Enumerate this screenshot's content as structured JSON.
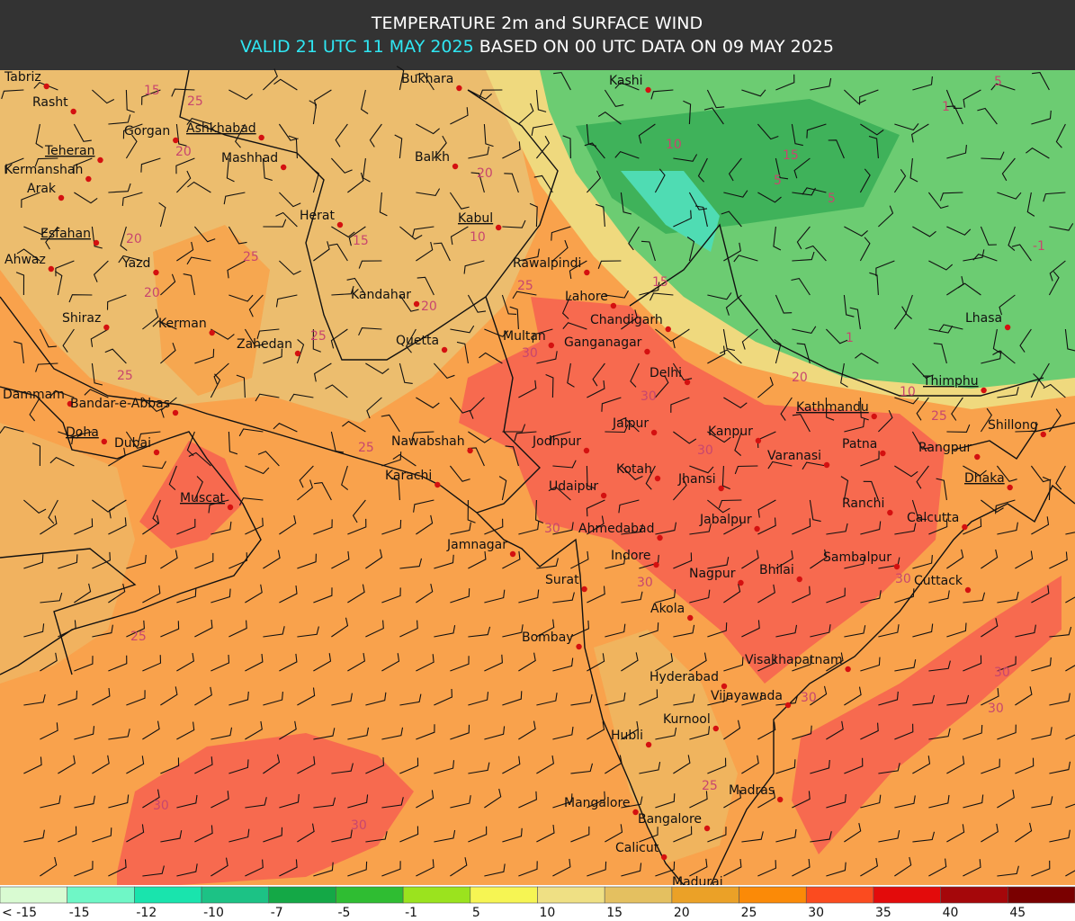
{
  "header": {
    "title": "TEMPERATURE 2m and SURFACE WIND",
    "valid": "VALID 21 UTC 11 MAY 2025",
    "based": "BASED ON 00 UTC DATA ON 09 MAY 2025"
  },
  "cities": [
    {
      "name": "Tabriz"
    },
    {
      "name": "Rasht"
    },
    {
      "name": "Gorgan"
    },
    {
      "name": "Ashkhabad",
      "capital": true
    },
    {
      "name": "Bukhara"
    },
    {
      "name": "Kashi"
    },
    {
      "name": "Teheran",
      "capital": true
    },
    {
      "name": "Mashhad"
    },
    {
      "name": "Balkh"
    },
    {
      "name": "Kermanshah"
    },
    {
      "name": "Arak"
    },
    {
      "name": "Herat"
    },
    {
      "name": "Kabul",
      "capital": true
    },
    {
      "name": "Esfahan",
      "capital": true
    },
    {
      "name": "Ahwaz"
    },
    {
      "name": "Yazd"
    },
    {
      "name": "Rawalpindi"
    },
    {
      "name": "Kandahar"
    },
    {
      "name": "Lahore"
    },
    {
      "name": "Shiraz"
    },
    {
      "name": "Lhasa"
    },
    {
      "name": "Chandigarh"
    },
    {
      "name": "Kerman"
    },
    {
      "name": "Multan"
    },
    {
      "name": "Ganganagar"
    },
    {
      "name": "Zahedan"
    },
    {
      "name": "Quetta"
    },
    {
      "name": "Delhi"
    },
    {
      "name": "Dammam"
    },
    {
      "name": "Thimphu",
      "capital": true
    },
    {
      "name": "Bandar-e-Abbas"
    },
    {
      "name": "Kathmandu",
      "capital": true
    },
    {
      "name": "Jaipur"
    },
    {
      "name": "Shillong"
    },
    {
      "name": "Kanpur"
    },
    {
      "name": "Doha",
      "capital": true
    },
    {
      "name": "Dubai"
    },
    {
      "name": "Nawabshah"
    },
    {
      "name": "Jodhpur"
    },
    {
      "name": "Patna"
    },
    {
      "name": "Rangpur"
    },
    {
      "name": "Varanasi"
    },
    {
      "name": "Kotah"
    },
    {
      "name": "Karachi"
    },
    {
      "name": "Jhansi"
    },
    {
      "name": "Dhaka",
      "capital": true
    },
    {
      "name": "Udaipur"
    },
    {
      "name": "Muscat",
      "capital": true
    },
    {
      "name": "Ranchi"
    },
    {
      "name": "Calcutta"
    },
    {
      "name": "Jabalpur"
    },
    {
      "name": "Ahmedabad"
    },
    {
      "name": "Jamnagar"
    },
    {
      "name": "Indore"
    },
    {
      "name": "Sambalpur"
    },
    {
      "name": "Surat"
    },
    {
      "name": "Nagpur"
    },
    {
      "name": "Bhilai"
    },
    {
      "name": "Cuttack"
    },
    {
      "name": "Akola"
    },
    {
      "name": "Bombay"
    },
    {
      "name": "Visakhapatnam"
    },
    {
      "name": "Hyderabad"
    },
    {
      "name": "Vijayawada"
    },
    {
      "name": "Kurnool"
    },
    {
      "name": "Hubli"
    },
    {
      "name": "Madras"
    },
    {
      "name": "Mangalore"
    },
    {
      "name": "Bangalore"
    },
    {
      "name": "Calicut"
    },
    {
      "name": "Madurai"
    }
  ],
  "contour_labels": [
    15,
    25,
    20,
    25,
    20,
    20,
    15,
    20,
    10,
    25,
    20,
    25,
    25,
    25,
    30,
    30,
    30,
    30,
    30,
    25,
    30,
    30,
    25,
    30,
    30,
    30,
    30,
    15,
    10,
    15,
    5,
    1,
    -1,
    20,
    25,
    10,
    5,
    1,
    5
  ],
  "legend": [
    {
      "label": "< -15",
      "color": "#d9fbd2"
    },
    {
      "label": "-15",
      "color": "#6ff7c6"
    },
    {
      "label": "-12",
      "color": "#19e4ad"
    },
    {
      "label": "-10",
      "color": "#1cc285"
    },
    {
      "label": "-7",
      "color": "#14a846"
    },
    {
      "label": "-5",
      "color": "#2fbd32"
    },
    {
      "label": "-1",
      "color": "#9be31e"
    },
    {
      "label": "5",
      "color": "#f6f553"
    },
    {
      "label": "10",
      "color": "#efe084"
    },
    {
      "label": "15",
      "color": "#e4c060"
    },
    {
      "label": "20",
      "color": "#eba127"
    },
    {
      "label": "25",
      "color": "#fb8a07"
    },
    {
      "label": "30",
      "color": "#fb4b1f"
    },
    {
      "label": "35",
      "color": "#e30b0b"
    },
    {
      "label": "40",
      "color": "#a5070a"
    },
    {
      "label": "45",
      "color": "#7a0000"
    }
  ]
}
